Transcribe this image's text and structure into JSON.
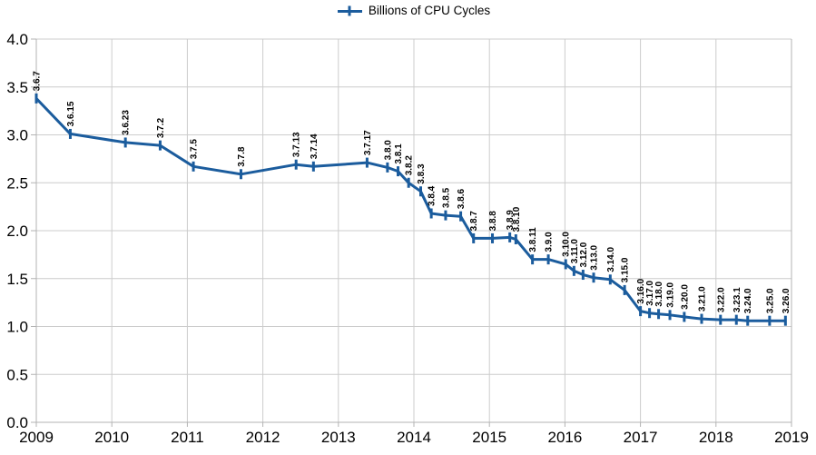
{
  "legend": {
    "label": "Billions of CPU Cycles"
  },
  "colors": {
    "series": "#1b5c9d",
    "grid": "#cccccc",
    "axis": "#b3b3b3",
    "text": "#000000",
    "background": "#ffffff"
  },
  "chart_data": {
    "type": "line",
    "title": "",
    "legend_position": "top-center",
    "grid": true,
    "xlabel": "",
    "ylabel": "",
    "x_axis": {
      "min": 2009,
      "max": 2019,
      "tick_labels": [
        "2009",
        "2010",
        "2011",
        "2012",
        "2013",
        "2014",
        "2015",
        "2016",
        "2017",
        "2018",
        "2019"
      ]
    },
    "y_axis": {
      "min": 0,
      "max": 4,
      "tick_labels": [
        "4.0",
        "3.5",
        "3.0",
        "2.5",
        "2.0",
        "1.5",
        "1.0",
        "0.5",
        "0.0"
      ]
    },
    "series": [
      {
        "name": "Billions of CPU Cycles",
        "marker": "vertical-dash",
        "points": [
          {
            "label": "3.6.7",
            "x": 2009.0,
            "y": 3.38
          },
          {
            "label": "3.6.15",
            "x": 2009.45,
            "y": 3.01
          },
          {
            "label": "3.6.23",
            "x": 2010.18,
            "y": 2.92
          },
          {
            "label": "3.7.2",
            "x": 2010.64,
            "y": 2.89
          },
          {
            "label": "3.7.5",
            "x": 2011.08,
            "y": 2.67
          },
          {
            "label": "3.7.8",
            "x": 2011.71,
            "y": 2.59
          },
          {
            "label": "3.7.13",
            "x": 2012.44,
            "y": 2.69
          },
          {
            "label": "3.7.14",
            "x": 2012.67,
            "y": 2.67
          },
          {
            "label": "3.7.17",
            "x": 2013.38,
            "y": 2.71
          },
          {
            "label": "3.8.0",
            "x": 2013.65,
            "y": 2.66
          },
          {
            "label": "3.8.1",
            "x": 2013.79,
            "y": 2.62
          },
          {
            "label": "3.8.2",
            "x": 2013.93,
            "y": 2.5
          },
          {
            "label": "3.8.3",
            "x": 2014.09,
            "y": 2.41
          },
          {
            "label": "3.8.4",
            "x": 2014.23,
            "y": 2.18
          },
          {
            "label": "3.8.5",
            "x": 2014.42,
            "y": 2.16
          },
          {
            "label": "3.8.6",
            "x": 2014.62,
            "y": 2.15
          },
          {
            "label": "3.8.7",
            "x": 2014.79,
            "y": 1.92
          },
          {
            "label": "3.8.8",
            "x": 2015.04,
            "y": 1.92
          },
          {
            "label": "3.8.9",
            "x": 2015.27,
            "y": 1.93
          },
          {
            "label": "3.8.10",
            "x": 2015.35,
            "y": 1.91
          },
          {
            "label": "3.8.11",
            "x": 2015.57,
            "y": 1.7
          },
          {
            "label": "3.9.0",
            "x": 2015.78,
            "y": 1.7
          },
          {
            "label": "3.10.0",
            "x": 2016.01,
            "y": 1.65
          },
          {
            "label": "3.11.0",
            "x": 2016.12,
            "y": 1.58
          },
          {
            "label": "3.12.0",
            "x": 2016.24,
            "y": 1.54
          },
          {
            "label": "3.13.0",
            "x": 2016.38,
            "y": 1.51
          },
          {
            "label": "3.14.0",
            "x": 2016.6,
            "y": 1.49
          },
          {
            "label": "3.15.0",
            "x": 2016.79,
            "y": 1.38
          },
          {
            "label": "3.16.0",
            "x": 2017.0,
            "y": 1.16
          },
          {
            "label": "3.17.0",
            "x": 2017.12,
            "y": 1.14
          },
          {
            "label": "3.18.0",
            "x": 2017.24,
            "y": 1.13
          },
          {
            "label": "3.19.0",
            "x": 2017.39,
            "y": 1.12
          },
          {
            "label": "3.20.0",
            "x": 2017.58,
            "y": 1.1
          },
          {
            "label": "3.21.0",
            "x": 2017.81,
            "y": 1.08
          },
          {
            "label": "3.22.0",
            "x": 2018.06,
            "y": 1.07
          },
          {
            "label": "3.23.1",
            "x": 2018.27,
            "y": 1.07
          },
          {
            "label": "3.24.0",
            "x": 2018.42,
            "y": 1.06
          },
          {
            "label": "3.25.0",
            "x": 2018.71,
            "y": 1.06
          },
          {
            "label": "3.26.0",
            "x": 2018.92,
            "y": 1.06
          }
        ]
      }
    ]
  }
}
